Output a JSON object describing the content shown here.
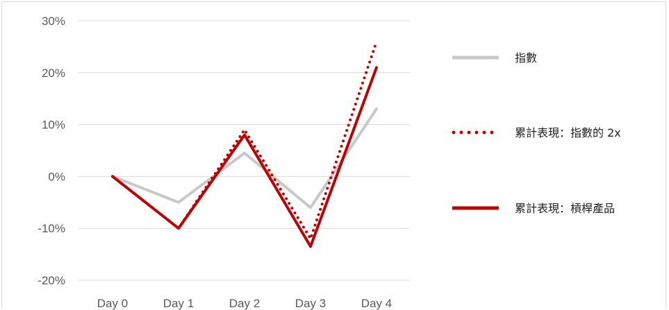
{
  "chart_data": {
    "type": "line",
    "categories": [
      "Day 0",
      "Day 1",
      "Day 2",
      "Day 3",
      "Day 4"
    ],
    "ylim": [
      -20,
      30
    ],
    "yticks": [
      30,
      20,
      10,
      0,
      -10,
      -20
    ],
    "ytick_labels": [
      "30%",
      "20%",
      "10%",
      "0%",
      "-10%",
      "-20%"
    ],
    "grid": "horizontal",
    "legend_position": "right",
    "series": [
      {
        "name": "指數",
        "values": [
          0,
          -5,
          4.5,
          -6,
          13
        ],
        "color": "#c8c8c8",
        "style": "solid"
      },
      {
        "name": "累計表現：指數的 2x",
        "values": [
          0,
          -10,
          9,
          -12,
          26
        ],
        "color": "#c00000",
        "style": "dotted"
      },
      {
        "name": "累計表現：槓桿產品",
        "values": [
          0,
          -10,
          8,
          -13.5,
          21
        ],
        "color": "#c00000",
        "style": "solid"
      }
    ]
  }
}
